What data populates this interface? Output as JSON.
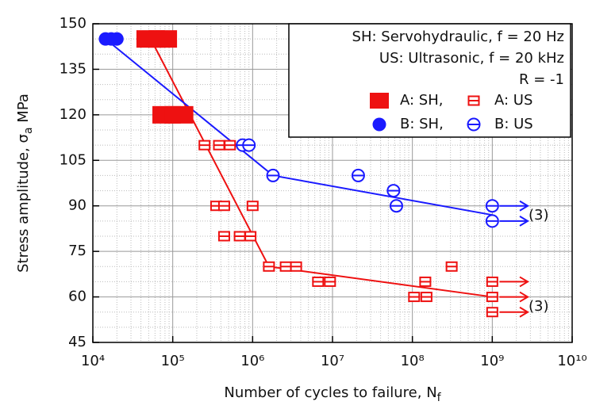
{
  "chart_data": {
    "type": "scatter",
    "xlabel": [
      "Number of cycles to failure, N",
      "f"
    ],
    "ylabel": [
      "Stress amplitude, σ",
      "a",
      " MPa"
    ],
    "xscale": "log",
    "xlim": [
      10000,
      10000000000
    ],
    "ylim": [
      45,
      150
    ],
    "xticks": [
      {
        "value": 10000,
        "label": "10⁴"
      },
      {
        "value": 100000,
        "label": "10⁵"
      },
      {
        "value": 1000000,
        "label": "10⁶"
      },
      {
        "value": 10000000,
        "label": "10⁷"
      },
      {
        "value": 100000000,
        "label": "10⁸"
      },
      {
        "value": 1000000000,
        "label": "10⁹"
      },
      {
        "value": 10000000000,
        "label": "10¹⁰"
      }
    ],
    "yticks": [
      45,
      60,
      75,
      90,
      105,
      120,
      135,
      150
    ],
    "grid": true,
    "legend_notes": [
      "SH: Servohydraulic, f = 20 Hz",
      "US: Ultrasonic, f = 20 kHz",
      "R = -1"
    ],
    "series": [
      {
        "name": "A: SH,",
        "color": "#ee1111",
        "marker": "square-filled",
        "x": [
          53000,
          75000,
          84000,
          120000
        ],
        "values": [
          145,
          145,
          120,
          120
        ]
      },
      {
        "name": "A: US",
        "color": "#ee1111",
        "marker": "square-open",
        "x": [
          250000,
          380000,
          520000,
          350000,
          440000,
          1000000,
          440000,
          690000,
          940000,
          1600000,
          2600000,
          3500000,
          310000000,
          6600000,
          9300000,
          145000000,
          1000000000,
          105000000,
          150000000,
          1000000000,
          1000000000
        ],
        "values": [
          110,
          110,
          110,
          90,
          90,
          90,
          80,
          80,
          80,
          70,
          70,
          70,
          70,
          65,
          65,
          65,
          65,
          60,
          60,
          60,
          55
        ]
      },
      {
        "name": "B: SH,",
        "color": "#1a1aff",
        "marker": "circle-filled",
        "x": [
          14400,
          17000,
          20000
        ],
        "values": [
          145,
          145,
          145
        ]
      },
      {
        "name": "B: US",
        "color": "#1a1aff",
        "marker": "circle-open",
        "x": [
          750000,
          900000,
          1800000,
          21000000,
          58000000,
          63000000,
          1000000000,
          1000000000
        ],
        "values": [
          110,
          110,
          100,
          100,
          95,
          90,
          90,
          85
        ]
      }
    ],
    "fit_lines": [
      {
        "color": "#ee1111",
        "x": [
          53000,
          1600000,
          1000000000
        ],
        "y": [
          145,
          70,
          60
        ]
      },
      {
        "color": "#1a1aff",
        "x": [
          14400,
          1800000,
          1000000000
        ],
        "y": [
          145,
          100,
          87
        ]
      }
    ],
    "runouts": [
      {
        "color": "#1a1aff",
        "x": [
          1000000000,
          1000000000
        ],
        "y": [
          90,
          85
        ]
      },
      {
        "color": "#ee1111",
        "x": [
          1000000000,
          1000000000,
          1000000000
        ],
        "y": [
          65,
          60,
          55
        ]
      }
    ],
    "annotations": [
      {
        "text": "(3)",
        "color": "#1a1aff"
      },
      {
        "text": "(3)",
        "color": "#ee1111"
      }
    ]
  }
}
